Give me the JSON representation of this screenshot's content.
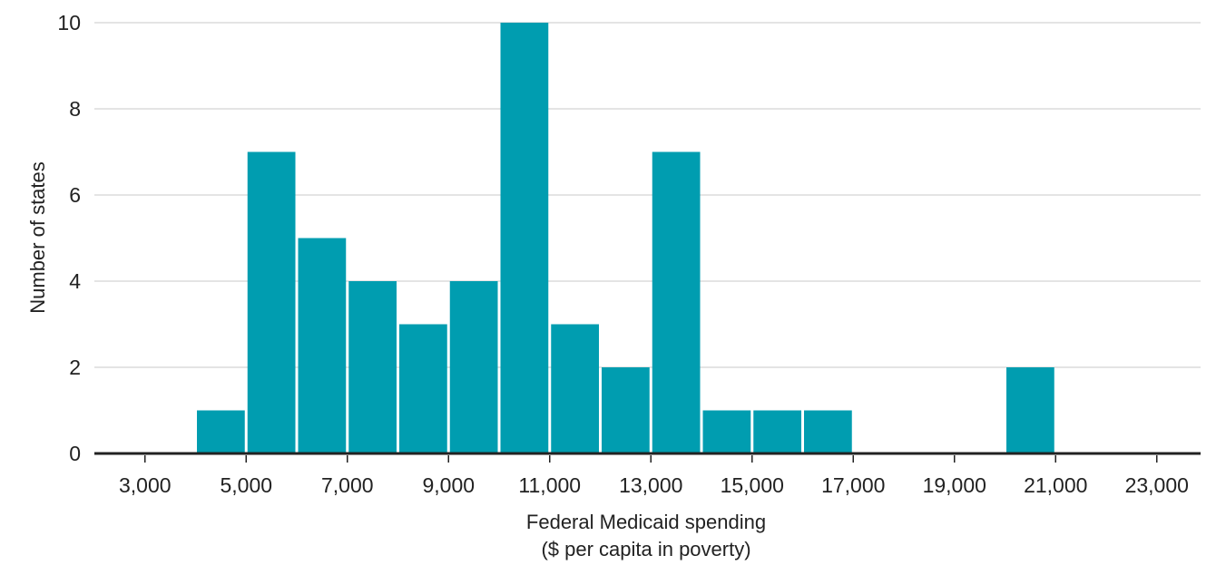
{
  "chart_data": {
    "type": "bar",
    "xlabel_lines": [
      "Federal Medicaid spending",
      "($ per capita in poverty)"
    ],
    "ylabel": "Number of states",
    "bin_width": 1000,
    "bins": [
      {
        "start": 4000,
        "end": 5000,
        "value": 1
      },
      {
        "start": 5000,
        "end": 6000,
        "value": 7
      },
      {
        "start": 6000,
        "end": 7000,
        "value": 5
      },
      {
        "start": 7000,
        "end": 8000,
        "value": 4
      },
      {
        "start": 8000,
        "end": 9000,
        "value": 3
      },
      {
        "start": 9000,
        "end": 10000,
        "value": 4
      },
      {
        "start": 10000,
        "end": 11000,
        "value": 10
      },
      {
        "start": 11000,
        "end": 12000,
        "value": 3
      },
      {
        "start": 12000,
        "end": 13000,
        "value": 2
      },
      {
        "start": 13000,
        "end": 14000,
        "value": 7
      },
      {
        "start": 14000,
        "end": 15000,
        "value": 1
      },
      {
        "start": 15000,
        "end": 16000,
        "value": 1
      },
      {
        "start": 16000,
        "end": 17000,
        "value": 1
      },
      {
        "start": 20000,
        "end": 21000,
        "value": 2
      }
    ],
    "xlim": [
      2000,
      24000
    ],
    "ylim": [
      0,
      10
    ],
    "x_ticks": [
      3000,
      5000,
      7000,
      9000,
      11000,
      13000,
      15000,
      17000,
      19000,
      21000,
      23000
    ],
    "x_tick_labels": [
      "3,000",
      "5,000",
      "7,000",
      "9,000",
      "11,000",
      "13,000",
      "15,000",
      "17,000",
      "19,000",
      "21,000",
      "23,000"
    ],
    "y_ticks": [
      0,
      2,
      4,
      6,
      8,
      10
    ],
    "y_tick_labels": [
      "0",
      "2",
      "4",
      "6",
      "8",
      "10"
    ],
    "grid": true,
    "bar_color": "#009db0"
  }
}
